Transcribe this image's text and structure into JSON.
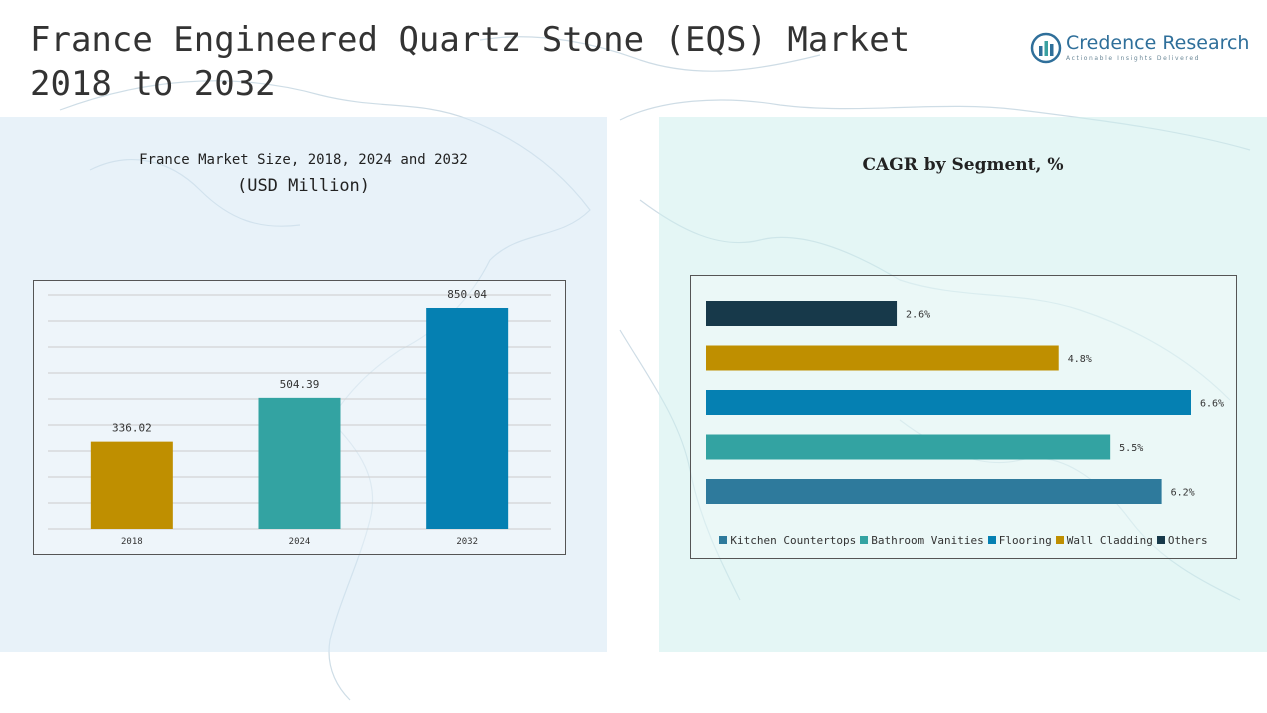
{
  "header": {
    "title_line1": "France Engineered Quartz Stone (EQS) Market",
    "title_line2": "2018 to 2032"
  },
  "logo": {
    "name": "Credence Research",
    "tagline": "Actionable Insights Delivered",
    "icon": "bar-chart-globe-icon"
  },
  "chart_data": [
    {
      "type": "bar",
      "title": "France Market Size, 2018, 2024 and 2032",
      "subtitle": "(USD Million)",
      "categories": [
        "2018",
        "2024",
        "2032"
      ],
      "values": [
        336.02,
        504.39,
        850.04
      ],
      "labels": [
        "336.02",
        "504.39",
        "850.04"
      ],
      "colors": [
        "#BF8F00",
        "#33A3A2",
        "#0580B2"
      ],
      "ylim": [
        0,
        900
      ],
      "grid": true
    },
    {
      "type": "bar",
      "orientation": "horizontal",
      "title": "CAGR by Segment, %",
      "categories": [
        "Others",
        "Wall Cladding",
        "Flooring",
        "Bathroom Vanities",
        "Kitchen Countertops"
      ],
      "values": [
        2.6,
        4.8,
        6.6,
        5.5,
        6.2
      ],
      "labels": [
        "2.6%",
        "4.8%",
        "6.6%",
        "5.5%",
        "6.2%"
      ],
      "colors": [
        "#17394A",
        "#BF8F00",
        "#0580B2",
        "#33A3A2",
        "#2E7A9C"
      ],
      "xlim": [
        0,
        6.6
      ],
      "legend": {
        "placement": "bottom",
        "entries": [
          {
            "name": "Kitchen Countertops",
            "color": "#2E7A9C"
          },
          {
            "name": "Bathroom Vanities",
            "color": "#33A3A2"
          },
          {
            "name": "Flooring",
            "color": "#0580B2"
          },
          {
            "name": "Wall Cladding",
            "color": "#BF8F00"
          },
          {
            "name": "Others",
            "color": "#17394A"
          }
        ]
      }
    }
  ]
}
